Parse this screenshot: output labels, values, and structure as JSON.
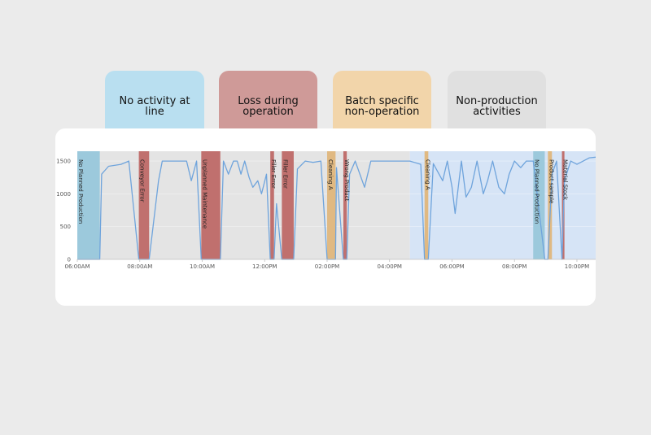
{
  "legend": [
    {
      "label": "No activity at line",
      "color": "#b9dff0"
    },
    {
      "label": "Loss during\noperation",
      "color": "#cf9a98"
    },
    {
      "label": "Batch specific\nnon-operation",
      "color": "#f2d5aa"
    },
    {
      "label": "Non-production\nactivities",
      "color": "#e0e0e0"
    }
  ],
  "chart_data": {
    "type": "line",
    "x_ticks": [
      "06:00AM",
      "08:00AM",
      "10:00AM",
      "12:00PM",
      "02:00PM",
      "04:00PM",
      "06:00PM",
      "08:00PM",
      "10:00PM"
    ],
    "x_range_hours": [
      6.0,
      22.6
    ],
    "y_ticks": [
      0,
      500,
      1000,
      1500
    ],
    "ylim": [
      0,
      1650
    ],
    "line_color": "#6fa4dc",
    "band_colors": {
      "no_activity": "#9cc9dc",
      "loss": "#c0706e",
      "batch": "#e0b982",
      "non_production": "#e4e4e4",
      "highlight": "#d6e4f6"
    },
    "regions": [
      {
        "kind": "non_production",
        "start": 6.0,
        "end": 16.65
      },
      {
        "kind": "highlight",
        "start": 16.65,
        "end": 22.6
      }
    ],
    "bands": [
      {
        "kind": "no_activity",
        "start": 6.0,
        "end": 6.72,
        "label": "No Planned Production"
      },
      {
        "kind": "loss",
        "start": 7.97,
        "end": 8.3,
        "label": "Conveyor Error"
      },
      {
        "kind": "loss",
        "start": 9.97,
        "end": 10.58,
        "label": "Unplanned Maintenance"
      },
      {
        "kind": "loss",
        "start": 12.18,
        "end": 12.3,
        "label": "Filler Error"
      },
      {
        "kind": "loss",
        "start": 12.55,
        "end": 12.93,
        "label": "Filler Error"
      },
      {
        "kind": "batch",
        "start": 14.0,
        "end": 14.27,
        "label": "Cleaning A"
      },
      {
        "kind": "loss",
        "start": 14.52,
        "end": 14.63,
        "label": "Wrong Product"
      },
      {
        "kind": "batch",
        "start": 17.12,
        "end": 17.24,
        "label": "Cleaning A"
      },
      {
        "kind": "no_activity",
        "start": 20.6,
        "end": 20.97,
        "label": "No Planned Production"
      },
      {
        "kind": "batch",
        "start": 21.07,
        "end": 21.2,
        "label": "Product sample"
      },
      {
        "kind": "loss",
        "start": 21.52,
        "end": 21.6,
        "label": "Material Stock"
      }
    ],
    "series": [
      {
        "x": [
          6.0,
          6.72,
          6.78,
          7.0,
          7.4,
          7.65,
          7.97,
          8.3,
          8.6,
          8.72,
          8.9,
          9.2,
          9.5,
          9.65,
          9.82,
          9.97,
          10.58,
          10.68,
          10.84,
          11.0,
          11.12,
          11.24,
          11.36,
          11.5,
          11.62,
          11.78,
          11.9,
          12.06,
          12.18,
          12.3,
          12.38,
          12.55,
          12.93,
          13.05,
          13.3,
          13.55,
          13.8,
          14.0,
          14.27,
          14.3,
          14.52,
          14.63,
          14.72,
          14.9,
          15.2,
          15.4,
          15.55,
          15.7,
          15.85,
          16.05,
          16.3,
          16.65,
          17.0,
          17.12,
          17.24,
          17.4,
          17.7,
          17.85,
          18.0,
          18.1,
          18.3,
          18.45,
          18.62,
          18.8,
          19.0,
          19.14,
          19.3,
          19.5,
          19.68,
          19.83,
          20.0,
          20.2,
          20.38,
          20.6,
          20.97,
          21.07,
          21.2,
          21.35,
          21.52,
          21.6,
          21.8,
          22.0,
          22.2,
          22.4,
          22.6
        ],
        "y": [
          0,
          0,
          1300,
          1420,
          1450,
          1500,
          0,
          0,
          1200,
          1500,
          1500,
          1500,
          1500,
          1200,
          1500,
          0,
          0,
          1500,
          1300,
          1500,
          1500,
          1300,
          1500,
          1250,
          1100,
          1200,
          1000,
          1300,
          0,
          0,
          850,
          0,
          0,
          1380,
          1500,
          1480,
          1500,
          0,
          0,
          1400,
          0,
          0,
          1300,
          1500,
          1100,
          1500,
          1500,
          1500,
          1500,
          1500,
          1500,
          1500,
          1450,
          0,
          0,
          1460,
          1200,
          1500,
          1100,
          700,
          1500,
          950,
          1100,
          1500,
          1000,
          1200,
          1500,
          1100,
          1000,
          1300,
          1500,
          1400,
          1500,
          1500,
          0,
          0,
          1300,
          1500,
          0,
          1200,
          1500,
          1450,
          1500,
          1550,
          1560
        ]
      }
    ]
  }
}
